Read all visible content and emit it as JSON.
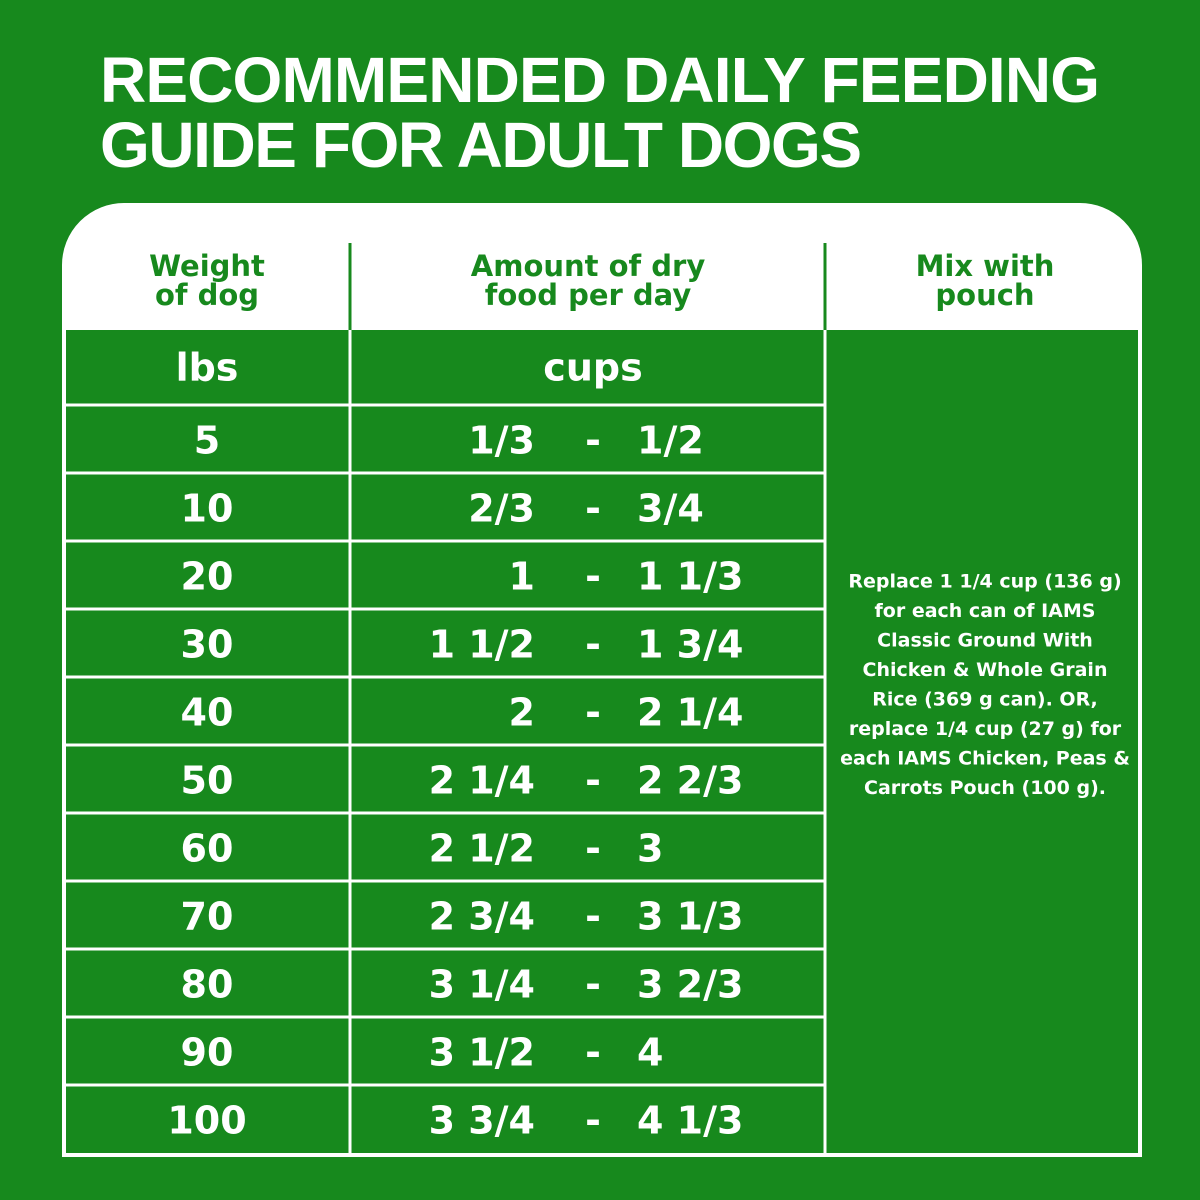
{
  "header": {
    "title_lines": [
      "RECOMMENDED DAILY FEEDING",
      "GUIDE FOR ADULT DOGS"
    ]
  },
  "table": {
    "columns": [
      [
        "Weight",
        "of dog"
      ],
      [
        "Amount of dry",
        "food per day"
      ],
      [
        "Mix with",
        "pouch"
      ]
    ],
    "units": [
      "lbs",
      "cups"
    ],
    "separator": "-",
    "rows": [
      [
        "5",
        "1/3",
        "1/2"
      ],
      [
        "10",
        "2/3",
        "3/4"
      ],
      [
        "20",
        "1",
        "1 1/3"
      ],
      [
        "30",
        "1 1/2",
        "1 3/4"
      ],
      [
        "40",
        "2",
        "2 1/4"
      ],
      [
        "50",
        "2 1/4",
        "2 2/3"
      ],
      [
        "60",
        "2 1/2",
        "3"
      ],
      [
        "70",
        "2 3/4",
        "3 1/3"
      ],
      [
        "80",
        "3 1/4",
        "3 2/3"
      ],
      [
        "90",
        "3 1/2",
        "4"
      ],
      [
        "100",
        "3 3/4",
        "4 1/3"
      ]
    ],
    "note_lines": [
      "Replace 1 1/4 cup (136 g)",
      "for each can of IAMS",
      "Classic Ground With",
      "Chicken & Whole Grain",
      "Rice (369 g can). OR,",
      "replace 1/4 cup (27 g) for",
      "each IAMS Chicken, Peas &",
      "Carrots Pouch (100 g)."
    ]
  }
}
